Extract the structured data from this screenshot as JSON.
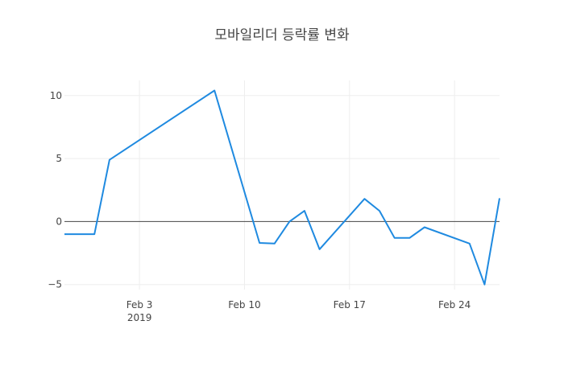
{
  "chart_data": {
    "type": "line",
    "title": "모바일리더 등락률 변화",
    "xlabel": "",
    "ylabel": "",
    "x_range": [
      "2019-01-29",
      "2019-02-27"
    ],
    "ylim": [
      -5.4,
      11.2
    ],
    "y_ticks": [
      10,
      5,
      0,
      -5
    ],
    "y_tick_labels": [
      "10",
      "5",
      "0",
      "−5"
    ],
    "x_ticks": [
      "2019-02-03",
      "2019-02-10",
      "2019-02-17",
      "2019-02-24"
    ],
    "x_tick_labels": [
      {
        "label": "Feb 3",
        "sub": "2019"
      },
      {
        "label": "Feb 10",
        "sub": ""
      },
      {
        "label": "Feb 17",
        "sub": ""
      },
      {
        "label": "Feb 24",
        "sub": ""
      }
    ],
    "grid": true,
    "zero_line": true,
    "line_color": "#1f8ae0",
    "series": [
      {
        "x": [
          "2019-01-29",
          "2019-01-30",
          "2019-01-31",
          "2019-02-01",
          "2019-02-08",
          "2019-02-11",
          "2019-02-12",
          "2019-02-13",
          "2019-02-14",
          "2019-02-15",
          "2019-02-18",
          "2019-02-19",
          "2019-02-20",
          "2019-02-21",
          "2019-02-22",
          "2019-02-25",
          "2019-02-26",
          "2019-02-27"
        ],
        "y": [
          -1.0,
          -1.0,
          -1.0,
          4.9,
          10.4,
          -1.7,
          -1.75,
          0.0,
          0.85,
          -2.2,
          1.8,
          0.85,
          -1.3,
          -1.3,
          -0.45,
          -1.75,
          -5.0,
          1.85
        ]
      }
    ]
  }
}
